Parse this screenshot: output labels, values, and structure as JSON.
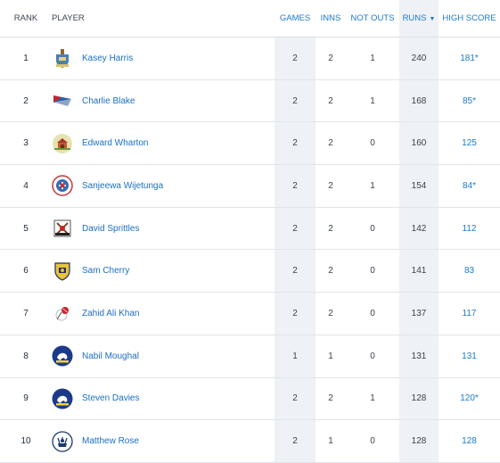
{
  "columns": {
    "rank": "RANK",
    "player": "PLAYER",
    "games": "GAMES",
    "inns": "INNS",
    "not_outs": "NOT OUTS",
    "runs": "RUNS",
    "runs_sort_icon": "▼",
    "high_score": "HIGH SCORE"
  },
  "colors": {
    "accent": "#1a7ad0",
    "sorted_column_bg": "#eef1f5"
  },
  "rows": [
    {
      "rank": "1",
      "player": "Kasey Harris",
      "games": "2",
      "inns": "2",
      "not_outs": "1",
      "runs": "240",
      "high_score": "181*",
      "crest": "shield-crest-icon"
    },
    {
      "rank": "2",
      "player": "Charlie Blake",
      "games": "2",
      "inns": "2",
      "not_outs": "1",
      "runs": "168",
      "high_score": "85*",
      "crest": "flag-crest-icon"
    },
    {
      "rank": "3",
      "player": "Edward Wharton",
      "games": "2",
      "inns": "2",
      "not_outs": "0",
      "runs": "160",
      "high_score": "125",
      "crest": "pavilion-crest-icon"
    },
    {
      "rank": "4",
      "player": "Sanjeewa Wijetunga",
      "games": "2",
      "inns": "2",
      "not_outs": "1",
      "runs": "154",
      "high_score": "84*",
      "crest": "club-badge-icon"
    },
    {
      "rank": "5",
      "player": "David Sprittles",
      "games": "2",
      "inns": "2",
      "not_outs": "0",
      "runs": "142",
      "high_score": "112",
      "crest": "crossed-bats-crest-icon"
    },
    {
      "rank": "6",
      "player": "Sam Cherry",
      "games": "2",
      "inns": "2",
      "not_outs": "0",
      "runs": "141",
      "high_score": "83",
      "crest": "gold-shield-icon"
    },
    {
      "rank": "7",
      "player": "Zahid Ali Khan",
      "games": "2",
      "inns": "2",
      "not_outs": "0",
      "runs": "137",
      "high_score": "117",
      "crest": "cricket-ball-icon"
    },
    {
      "rank": "8",
      "player": "Nabil Moughal",
      "games": "1",
      "inns": "1",
      "not_outs": "0",
      "runs": "131",
      "high_score": "131",
      "crest": "lion-badge-icon"
    },
    {
      "rank": "9",
      "player": "Steven Davies",
      "games": "2",
      "inns": "2",
      "not_outs": "1",
      "runs": "128",
      "high_score": "120*",
      "crest": "lion-badge-icon"
    },
    {
      "rank": "10",
      "player": "Matthew Rose",
      "games": "2",
      "inns": "1",
      "not_outs": "0",
      "runs": "128",
      "high_score": "128",
      "crest": "stag-crest-icon"
    }
  ]
}
